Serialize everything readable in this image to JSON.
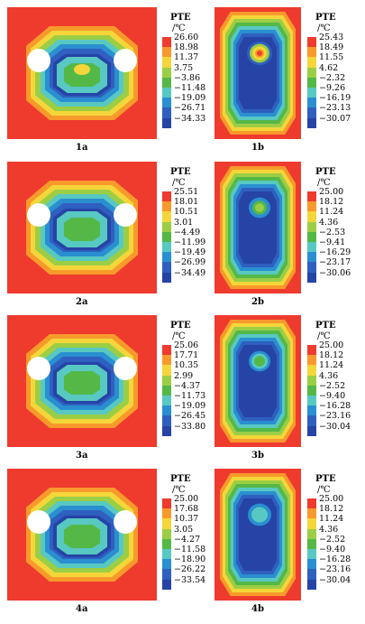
{
  "legend_title": "PTE",
  "legend_unit": "/℃",
  "band_colors": [
    "#ee3b2e",
    "#f79a2b",
    "#f5d63a",
    "#9bce45",
    "#54b847",
    "#58c8c2",
    "#2a8fd0",
    "#2f5fbf",
    "#2544a6"
  ],
  "panels": [
    {
      "id": "1a",
      "caption": "1a",
      "shape": "a",
      "levels": [
        "26.60",
        "18.98",
        "11.37",
        "3.75",
        "−3.86",
        "−11.48",
        "−19.09",
        "−26.71",
        "−34.33"
      ]
    },
    {
      "id": "1b",
      "caption": "1b",
      "shape": "b",
      "levels": [
        "25.43",
        "18.49",
        "11.55",
        "4.62",
        "−2.32",
        "−9.26",
        "−16.19",
        "−23.13",
        "−30.07"
      ]
    },
    {
      "id": "2a",
      "caption": "2a",
      "shape": "a",
      "levels": [
        "25.51",
        "18.01",
        "10.51",
        "3.01",
        "−4.49",
        "−11.99",
        "−19.49",
        "−26.99",
        "−34.49"
      ]
    },
    {
      "id": "2b",
      "caption": "2b",
      "shape": "b",
      "levels": [
        "25.00",
        "18.12",
        "11.24",
        "4.36",
        "−2.53",
        "−9.41",
        "−16.29",
        "−23.17",
        "−30.06"
      ]
    },
    {
      "id": "3a",
      "caption": "3a",
      "shape": "a",
      "levels": [
        "25.06",
        "17.71",
        "10.35",
        "2.99",
        "−4.37",
        "−11.73",
        "−19.09",
        "−26.45",
        "−33.80"
      ]
    },
    {
      "id": "3b",
      "caption": "3b",
      "shape": "b",
      "levels": [
        "25.00",
        "18.12",
        "11.24",
        "4.36",
        "−2.52",
        "−9.40",
        "−16.28",
        "−23.16",
        "−30.04"
      ]
    },
    {
      "id": "4a",
      "caption": "4a",
      "shape": "a",
      "levels": [
        "25.00",
        "17.68",
        "10.37",
        "3.05",
        "−4.27",
        "−11.58",
        "−18.90",
        "−26.22",
        "−33.54"
      ]
    },
    {
      "id": "4b",
      "caption": "4b",
      "shape": "b",
      "levels": [
        "25.00",
        "18.12",
        "11.24",
        "4.36",
        "−2.52",
        "−9.40",
        "−16.28",
        "−23.16",
        "−30.04"
      ]
    }
  ]
}
